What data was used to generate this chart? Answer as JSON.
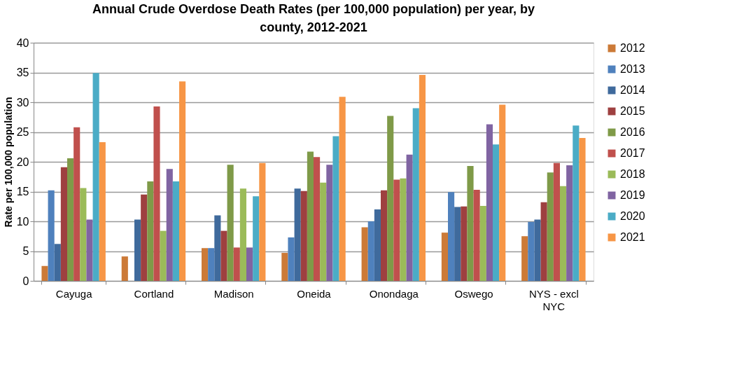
{
  "chart_data": {
    "type": "bar",
    "title": "Annual Crude Overdose Death Rates (per 100,000 population) per year, by\ncounty, 2012-2021",
    "ylabel": "Rate per 100,000 population",
    "categories": [
      "Cayuga",
      "Cortland",
      "Madison",
      "Oneida",
      "Onondaga",
      "Oswego",
      "NYS - excl\nNYC"
    ],
    "series": [
      {
        "name": "2012",
        "color": "#cc7a37",
        "values": [
          2.5,
          4.1,
          5.5,
          4.7,
          9.0,
          8.1,
          7.5
        ]
      },
      {
        "name": "2013",
        "color": "#4f81bd",
        "values": [
          15.2,
          null,
          5.5,
          7.3,
          10.0,
          14.9,
          9.9
        ]
      },
      {
        "name": "2014",
        "color": "#3f6a9c",
        "values": [
          6.2,
          10.3,
          11.0,
          15.5,
          12.0,
          12.4,
          10.3
        ]
      },
      {
        "name": "2015",
        "color": "#9e4040",
        "values": [
          19.1,
          14.5,
          8.4,
          15.1,
          15.2,
          12.5,
          13.2
        ]
      },
      {
        "name": "2016",
        "color": "#7f9a48",
        "values": [
          20.6,
          16.7,
          19.5,
          21.7,
          27.7,
          19.3,
          18.2
        ]
      },
      {
        "name": "2017",
        "color": "#c0504d",
        "values": [
          25.8,
          29.3,
          5.6,
          20.8,
          17.0,
          15.3,
          19.8
        ]
      },
      {
        "name": "2018",
        "color": "#9bbb59",
        "values": [
          15.6,
          8.4,
          15.5,
          16.5,
          17.2,
          12.6,
          15.9
        ]
      },
      {
        "name": "2019",
        "color": "#8064a2",
        "values": [
          10.3,
          18.8,
          5.6,
          19.5,
          21.2,
          26.3,
          19.4
        ]
      },
      {
        "name": "2020",
        "color": "#4bacc6",
        "values": [
          34.9,
          16.7,
          14.2,
          24.3,
          29.0,
          22.9,
          26.1
        ]
      },
      {
        "name": "2021",
        "color": "#f79646",
        "values": [
          23.3,
          33.5,
          19.8,
          30.9,
          34.6,
          29.6,
          24.0
        ]
      }
    ],
    "ylim": [
      0,
      40
    ],
    "yticks": [
      0,
      5,
      10,
      15,
      20,
      25,
      30,
      35,
      40
    ],
    "grid": "y",
    "legend": "right"
  }
}
